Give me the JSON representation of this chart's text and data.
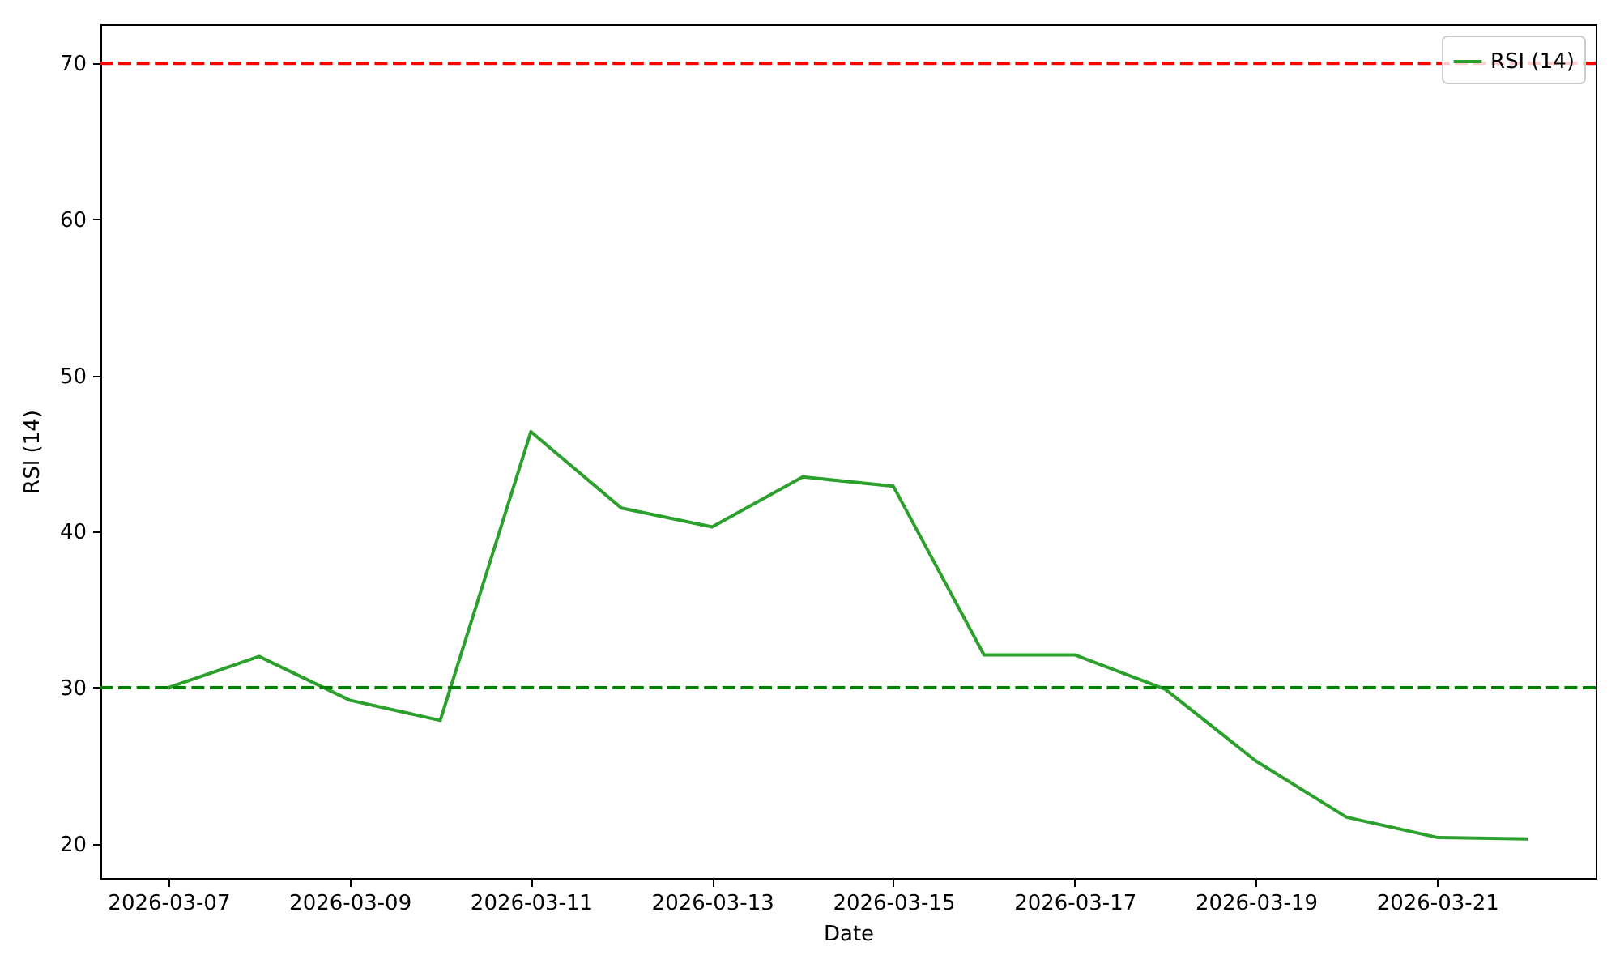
{
  "chart_data": {
    "type": "line",
    "xlabel": "Date",
    "ylabel": "RSI (14)",
    "x": [
      "2026-03-07",
      "2026-03-08",
      "2026-03-09",
      "2026-03-10",
      "2026-03-11",
      "2026-03-12",
      "2026-03-13",
      "2026-03-14",
      "2026-03-15",
      "2026-03-16",
      "2026-03-17",
      "2026-03-18",
      "2026-03-19",
      "2026-03-20",
      "2026-03-21",
      "2026-03-22"
    ],
    "series": [
      {
        "name": "RSI (14)",
        "color": "#2ca02c",
        "values": [
          30.0,
          32.0,
          29.2,
          27.9,
          46.4,
          41.5,
          40.3,
          43.5,
          42.9,
          32.1,
          32.1,
          29.9,
          25.3,
          21.7,
          20.4,
          20.3
        ]
      }
    ],
    "xlim": [
      "2026-03-06T06:00",
      "2026-03-22T18:00"
    ],
    "ylim": [
      17.8,
      72.5
    ],
    "xticks": [
      "2026-03-07",
      "2026-03-09",
      "2026-03-11",
      "2026-03-13",
      "2026-03-15",
      "2026-03-17",
      "2026-03-19",
      "2026-03-21"
    ],
    "yticks": [
      20,
      30,
      40,
      50,
      60,
      70
    ],
    "ref_lines": [
      {
        "axis": "y",
        "value": 70,
        "color": "#ff0000",
        "line_style": "dashed"
      },
      {
        "axis": "y",
        "value": 30,
        "color": "#008000",
        "line_style": "dashed"
      }
    ],
    "grid": false,
    "legend": "top right",
    "marker": "none",
    "line_style": "solid"
  }
}
